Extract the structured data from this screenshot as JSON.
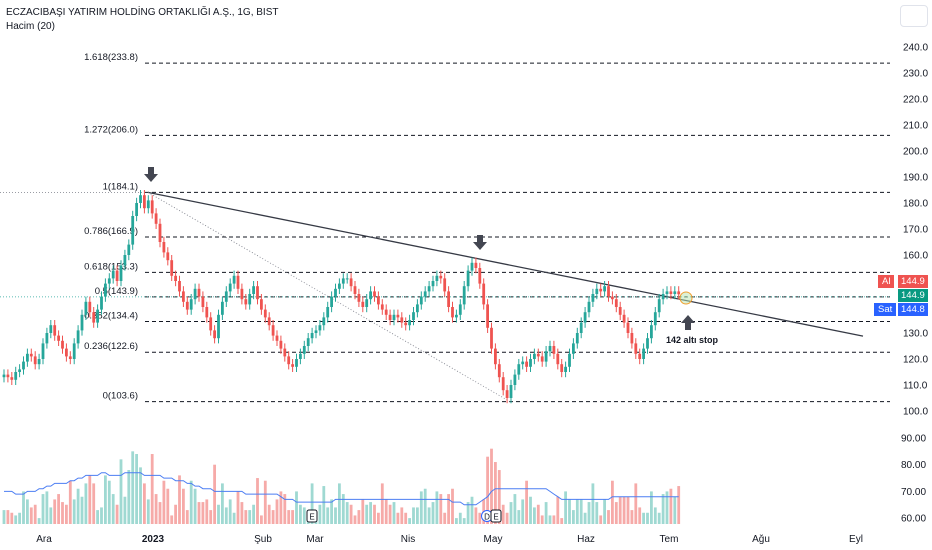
{
  "header": {
    "symbol_title": "ECZACIBAŞI YATIRIM HOLDİNG ORTAKLIĞI A.Ş., 1G, BIST",
    "volume_label": "Hacim (20)"
  },
  "price_tags": {
    "buy_label": "Al",
    "buy_value": "144.9",
    "last_value": "144.9",
    "sell_label": "Sat",
    "sell_value": "144.8"
  },
  "annotation": {
    "stop_text": "142 altı stop"
  },
  "colors": {
    "up": "#26a69a",
    "down": "#ef5350",
    "vol_up": "#9fd9d2",
    "vol_down": "#f6aaa8",
    "ma": "#4c7ef3",
    "trend": "#363a45",
    "fib": "#131722",
    "accent_blue": "#2962ff"
  },
  "chart_data": {
    "type": "candlestick",
    "price_axis": {
      "ticks": [
        "240.0",
        "230.0",
        "220.0",
        "210.0",
        "200.0",
        "190.0",
        "180.0",
        "170.0",
        "160.0",
        "150.0",
        "140.0",
        "130.0",
        "120.0",
        "110.0",
        "100.0"
      ],
      "range": [
        98,
        246
      ]
    },
    "volume_axis": {
      "ticks": [
        "90.00",
        "80.00",
        "70.00",
        "60.00"
      ],
      "range": [
        56,
        92
      ]
    },
    "time_axis": {
      "labels": [
        "Ara",
        "2023",
        "Şub",
        "Mar",
        "Nis",
        "May",
        "Haz",
        "Tem",
        "Ağu",
        "Eyl"
      ]
    },
    "fibonacci": [
      {
        "label": "1.618(233.8)",
        "value": 233.8
      },
      {
        "label": "1.272(206.0)",
        "value": 206.0
      },
      {
        "label": "1(184.1)",
        "value": 184.1
      },
      {
        "label": "0.786(166.9)",
        "value": 166.9
      },
      {
        "label": "0.618(153.3)",
        "value": 153.3
      },
      {
        "label": "0.5(143.9)",
        "value": 143.9
      },
      {
        "label": "0.382(134.4)",
        "value": 134.4
      },
      {
        "label": "0.236(122.6)",
        "value": 122.6
      },
      {
        "label": "0(103.6)",
        "value": 103.6
      }
    ],
    "events": [
      {
        "label": "E"
      },
      {
        "label": "D"
      },
      {
        "label": "E"
      }
    ],
    "series": [
      {
        "name": "Price",
        "closes": [
          114,
          113,
          112,
          115,
          116,
          119,
          122,
          121,
          118,
          120,
          126,
          130,
          133,
          129,
          127,
          124,
          121,
          120,
          126,
          131,
          137,
          142,
          138,
          134,
          139,
          144,
          149,
          151,
          154,
          150,
          156,
          160,
          164,
          175,
          180,
          183,
          178,
          181,
          176,
          172,
          165,
          161,
          158,
          152,
          150,
          146,
          142,
          139,
          143,
          147,
          144,
          140,
          136,
          131,
          128,
          137,
          142,
          146,
          149,
          152,
          147,
          143,
          141,
          145,
          148,
          143,
          139,
          136,
          133,
          129,
          127,
          124,
          121,
          118,
          117,
          120,
          122,
          125,
          128,
          130,
          131,
          133,
          136,
          140,
          144,
          147,
          149,
          151,
          151,
          148,
          145,
          142,
          140,
          143,
          146,
          144,
          141,
          139,
          137,
          135,
          137,
          136,
          134,
          133,
          135,
          138,
          141,
          144,
          146,
          148,
          150,
          152,
          151,
          146,
          140,
          136,
          137,
          141,
          148,
          154,
          157,
          155,
          149,
          141,
          132,
          124,
          118,
          113,
          108,
          105,
          110,
          114,
          118,
          119,
          117,
          120,
          122,
          121,
          119,
          123,
          125,
          122,
          118,
          115,
          117,
          122,
          126,
          130,
          134,
          138,
          142,
          145,
          147,
          146,
          148,
          144,
          143,
          140,
          137,
          134,
          130,
          126,
          122,
          120,
          124,
          128,
          133,
          138,
          143,
          145,
          146,
          145,
          146,
          144.9
        ],
        "volumes": [
          63,
          63,
          62,
          61,
          62,
          70,
          67,
          64,
          65,
          60,
          69,
          70,
          64,
          67,
          69,
          66,
          65,
          74,
          67,
          71,
          68,
          73,
          76,
          73,
          63,
          64,
          76,
          74,
          69,
          65,
          82,
          68,
          78,
          85,
          84,
          79,
          73,
          67,
          84,
          69,
          66,
          74,
          71,
          61,
          65,
          76,
          71,
          63,
          74,
          71,
          66,
          66,
          67,
          63,
          80,
          65,
          73,
          64,
          67,
          62,
          70,
          66,
          63,
          63,
          65,
          75,
          61,
          74,
          65,
          63,
          67,
          70,
          69,
          63,
          63,
          70,
          65,
          64,
          63,
          73,
          60,
          65,
          72,
          64,
          67,
          64,
          73,
          69,
          66,
          65,
          61,
          63,
          67,
          65,
          66,
          65,
          62,
          73,
          67,
          65,
          66,
          62,
          64,
          62,
          60,
          64,
          64,
          70,
          71,
          64,
          66,
          70,
          69,
          62,
          69,
          71,
          60,
          62,
          60,
          66,
          68,
          64,
          62,
          67,
          83,
          86,
          81,
          78,
          65,
          62,
          66,
          69,
          63,
          67,
          74,
          68,
          64,
          65,
          61,
          66,
          61,
          61,
          68,
          60,
          70,
          67,
          63,
          67,
          67,
          62,
          66,
          73,
          66,
          61,
          67,
          63,
          74,
          66,
          68,
          68,
          68,
          63,
          73,
          64,
          62,
          62,
          70,
          64,
          62,
          69,
          70,
          71,
          68,
          72
        ],
        "ma": [
          70,
          70,
          70,
          69,
          69,
          69,
          70,
          70,
          70,
          71,
          71,
          72,
          72,
          73,
          73,
          73,
          73,
          74,
          74,
          75,
          75,
          76,
          76,
          76,
          76,
          77,
          77,
          76,
          76,
          76,
          76,
          77,
          77,
          77,
          77,
          77,
          76,
          76,
          76,
          76,
          76,
          75,
          75,
          75,
          74,
          74,
          74,
          73,
          73,
          72,
          72,
          71,
          71,
          71,
          70,
          70,
          70,
          70,
          70,
          70,
          70,
          70,
          69,
          69,
          69,
          69,
          69,
          69,
          69,
          69,
          69,
          68,
          67,
          67,
          67,
          66,
          66,
          66,
          66,
          66,
          66,
          66,
          66,
          66,
          66,
          67,
          67,
          67,
          67,
          67,
          67,
          67,
          67,
          67,
          67,
          67,
          67,
          67,
          67,
          67,
          67,
          67,
          67,
          67,
          67,
          67,
          67,
          67,
          67,
          67,
          67,
          67,
          67,
          67,
          67,
          66,
          66,
          66,
          65,
          65,
          65,
          65,
          66,
          67,
          68,
          70,
          71,
          71,
          71,
          71,
          71,
          71,
          71,
          71,
          71,
          71,
          71,
          71,
          71,
          71,
          70,
          69,
          68,
          67,
          67,
          67,
          67,
          67,
          67,
          67,
          67,
          67,
          67,
          67,
          67,
          67,
          68,
          68,
          68,
          68,
          68,
          68,
          68,
          68,
          68,
          68,
          68,
          68,
          68,
          68,
          68,
          68,
          68,
          68
        ]
      }
    ]
  }
}
